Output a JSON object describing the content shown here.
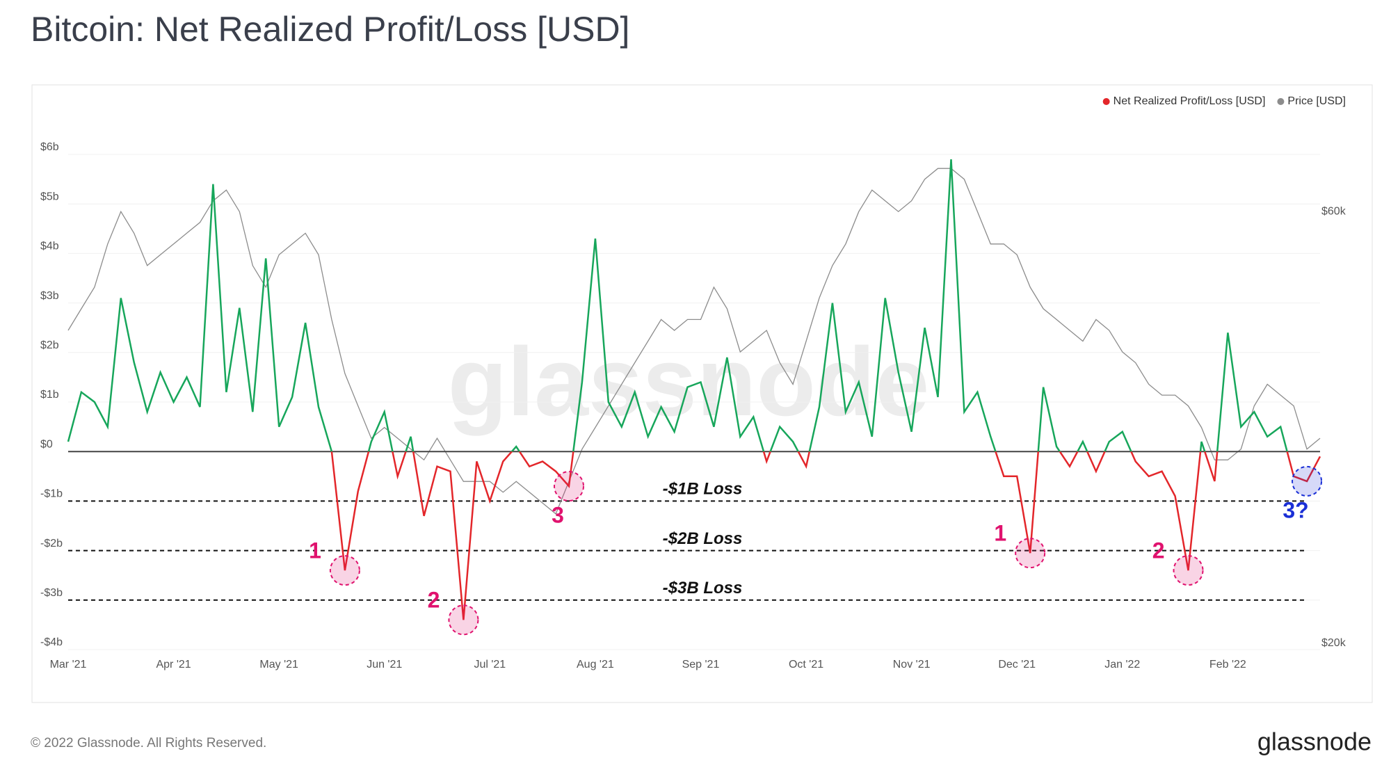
{
  "chart_data": {
    "type": "line",
    "title": "Bitcoin: Net Realized Profit/Loss [USD]",
    "watermark": "glassnode",
    "footer": "© 2022 Glassnode. All Rights Reserved.",
    "logo": "glassnode",
    "categories": [
      "Mar '21",
      null,
      null,
      null,
      null,
      null,
      null,
      null,
      "Apr '21",
      null,
      null,
      null,
      null,
      null,
      null,
      null,
      "May '21",
      null,
      null,
      null,
      null,
      null,
      null,
      null,
      "Jun '21",
      null,
      null,
      null,
      null,
      null,
      null,
      null,
      "Jul '21",
      null,
      null,
      null,
      null,
      null,
      null,
      null,
      "Aug '21",
      null,
      null,
      null,
      null,
      null,
      null,
      null,
      "Sep '21",
      null,
      null,
      null,
      null,
      null,
      null,
      null,
      "Oct '21",
      null,
      null,
      null,
      null,
      null,
      null,
      null,
      "Nov '21",
      null,
      null,
      null,
      null,
      null,
      null,
      null,
      "Dec '21",
      null,
      null,
      null,
      null,
      null,
      null,
      null,
      "Jan '22",
      null,
      null,
      null,
      null,
      null,
      null,
      null,
      "Feb '22",
      null,
      null,
      null,
      null,
      null,
      null,
      null
    ],
    "series": [
      {
        "name": "Net Realized Profit/Loss [USD]",
        "color": "#e3262a",
        "positive_color": "#17a65b",
        "axis": "y",
        "values": [
          0.2,
          1.2,
          1.0,
          0.5,
          3.1,
          1.8,
          0.8,
          1.6,
          1.0,
          1.5,
          0.9,
          5.4,
          1.2,
          2.9,
          0.8,
          3.9,
          0.5,
          1.1,
          2.6,
          0.9,
          0.0,
          -2.4,
          -0.8,
          0.2,
          0.8,
          -0.5,
          0.3,
          -1.3,
          -0.3,
          -0.4,
          -3.4,
          -0.2,
          -1.0,
          -0.2,
          0.1,
          -0.3,
          -0.2,
          -0.4,
          -0.7,
          1.4,
          4.3,
          1.0,
          0.5,
          1.2,
          0.3,
          0.9,
          0.4,
          1.3,
          1.4,
          0.5,
          1.9,
          0.3,
          0.7,
          -0.2,
          0.5,
          0.2,
          -0.3,
          0.9,
          3.0,
          0.8,
          1.4,
          0.3,
          3.1,
          1.6,
          0.4,
          2.5,
          1.1,
          5.9,
          0.8,
          1.2,
          0.3,
          -0.5,
          -0.5,
          -2.05,
          1.3,
          0.1,
          -0.3,
          0.2,
          -0.4,
          0.2,
          0.4,
          -0.2,
          -0.5,
          -0.4,
          -0.9,
          -2.4,
          0.2,
          -0.6,
          2.4,
          0.5,
          0.8,
          0.3,
          0.5,
          -0.5,
          -0.6,
          -0.1
        ]
      },
      {
        "name": "Price [USD]",
        "color": "#8c8c8c",
        "axis": "y2",
        "values": [
          49000,
          51000,
          53000,
          57000,
          60000,
          58000,
          55000,
          56000,
          57000,
          58000,
          59000,
          61000,
          62000,
          60000,
          55000,
          53000,
          56000,
          57000,
          58000,
          56000,
          50000,
          45000,
          42000,
          39000,
          40000,
          39000,
          38000,
          37000,
          39000,
          37000,
          35000,
          35000,
          35000,
          34000,
          35000,
          34000,
          33000,
          32000,
          35000,
          38000,
          40000,
          42000,
          44000,
          46000,
          48000,
          50000,
          49000,
          50000,
          50000,
          53000,
          51000,
          47000,
          48000,
          49000,
          46000,
          44000,
          48000,
          52000,
          55000,
          57000,
          60000,
          62000,
          61000,
          60000,
          61000,
          63000,
          64000,
          64000,
          63000,
          60000,
          57000,
          57000,
          56000,
          53000,
          51000,
          50000,
          49000,
          48000,
          50000,
          49000,
          47000,
          46000,
          44000,
          43000,
          43000,
          42000,
          40000,
          37000,
          37000,
          38000,
          42000,
          44000,
          43000,
          42000,
          38000,
          39000
        ]
      }
    ],
    "ylim": [
      -4,
      6
    ],
    "yticks": [
      {
        "value": -4,
        "label": "-$4b"
      },
      {
        "value": -3,
        "label": "-$3b"
      },
      {
        "value": -2,
        "label": "-$2b"
      },
      {
        "value": -1,
        "label": "-$1b"
      },
      {
        "value": 0,
        "label": "$0"
      },
      {
        "value": 1,
        "label": "$1b"
      },
      {
        "value": 2,
        "label": "$2b"
      },
      {
        "value": 3,
        "label": "$3b"
      },
      {
        "value": 4,
        "label": "$4b"
      },
      {
        "value": 5,
        "label": "$5b"
      },
      {
        "value": 6,
        "label": "$6b"
      }
    ],
    "y2lim": [
      19420,
      65300
    ],
    "y2ticks": [
      {
        "value": 20000,
        "label": "$20k"
      },
      {
        "value": 60000,
        "label": "$60k"
      }
    ],
    "grid": true,
    "legend": "top-right",
    "reference_lines": [
      {
        "value": -1,
        "label": "-$1B Loss"
      },
      {
        "value": -2,
        "label": "-$2B Loss"
      },
      {
        "value": -3,
        "label": "-$3B Loss"
      }
    ],
    "markers": [
      {
        "label": "1",
        "index": 21,
        "color": "#e0126e"
      },
      {
        "label": "2",
        "index": 30,
        "color": "#e0126e"
      },
      {
        "label": "3",
        "index": 38,
        "color": "#e0126e"
      },
      {
        "label": "1",
        "index": 73,
        "color": "#e0126e"
      },
      {
        "label": "2",
        "index": 85,
        "color": "#e0126e"
      },
      {
        "label": "3?",
        "index": 94,
        "color": "#1a2fd6"
      }
    ]
  }
}
